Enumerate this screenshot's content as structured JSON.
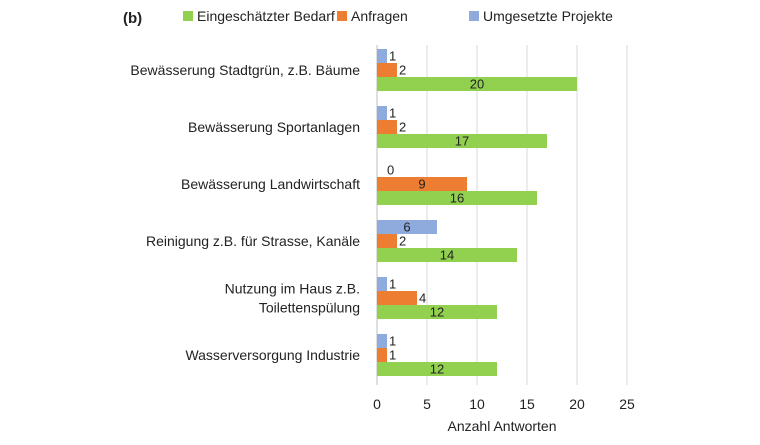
{
  "panel_label": "(b)",
  "chart_data": {
    "type": "bar",
    "orientation": "horizontal",
    "categories": [
      "Bewässerung Stadtgrün, z.B. Bäume",
      "Bewässerung Sportanlagen",
      "Bewässerung Landwirtschaft",
      "Reinigung z.B. für Strasse, Kanäle",
      "Nutzung im Haus z.B. Toilettenspülung",
      "Wasserversorgung Industrie"
    ],
    "series": [
      {
        "name": "Eingeschätzter Bedarf",
        "color": "#92d050",
        "values": [
          20,
          17,
          16,
          14,
          12,
          12
        ]
      },
      {
        "name": "Anfragen",
        "color": "#ed7d31",
        "values": [
          2,
          2,
          9,
          2,
          4,
          1
        ]
      },
      {
        "name": "Umgesetzte Projekte",
        "color": "#8faadc",
        "values": [
          1,
          1,
          0,
          6,
          1,
          1
        ]
      }
    ],
    "xlabel": "Anzahl Antworten",
    "xlim": [
      0,
      25
    ],
    "xticks": [
      0,
      5,
      10,
      15,
      20,
      25
    ],
    "grid": "vertical",
    "legend": "top"
  }
}
